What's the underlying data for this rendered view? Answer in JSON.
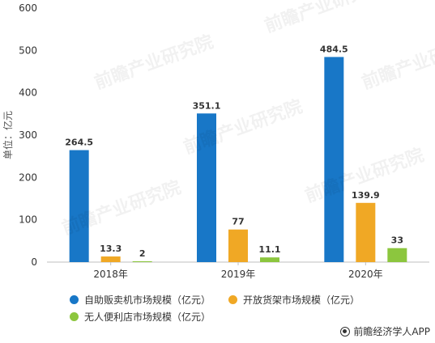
{
  "chart_data": {
    "type": "bar",
    "categories": [
      "2018年",
      "2019年",
      "2020年"
    ],
    "series": [
      {
        "name": "自助贩卖机市场规模（亿元）",
        "values": [
          264.5,
          351.1,
          484.5
        ],
        "color": "#1877c7",
        "labels": [
          "264.5",
          "351.1",
          "484.5"
        ]
      },
      {
        "name": "开放货架市场规模（亿元）",
        "values": [
          13.3,
          77,
          139.9
        ],
        "color": "#f0a825",
        "labels": [
          "13.3",
          "77",
          "139.9"
        ]
      },
      {
        "name": "无人便利店市场规模（亿元）",
        "values": [
          2,
          11.1,
          33
        ],
        "color": "#8cc63e",
        "labels": [
          "2",
          "11.1",
          "33"
        ]
      }
    ],
    "ylabel": "单位：亿元",
    "ylim": [
      0,
      600
    ],
    "yticks": [
      0,
      100,
      200,
      300,
      400,
      500,
      600
    ],
    "grid": false,
    "legend_position": "bottom"
  },
  "legend": {
    "items": [
      {
        "label": "自助贩卖机市场规模（亿元）",
        "color": "#1877c7"
      },
      {
        "label": "开放货架市场规模（亿元）",
        "color": "#f0a825"
      },
      {
        "label": "无人便利店市场规模（亿元）",
        "color": "#8cc63e"
      }
    ]
  },
  "credit": {
    "text": "前瞻经济学人APP"
  },
  "watermark": {
    "text": "前瞻产业研究院"
  }
}
